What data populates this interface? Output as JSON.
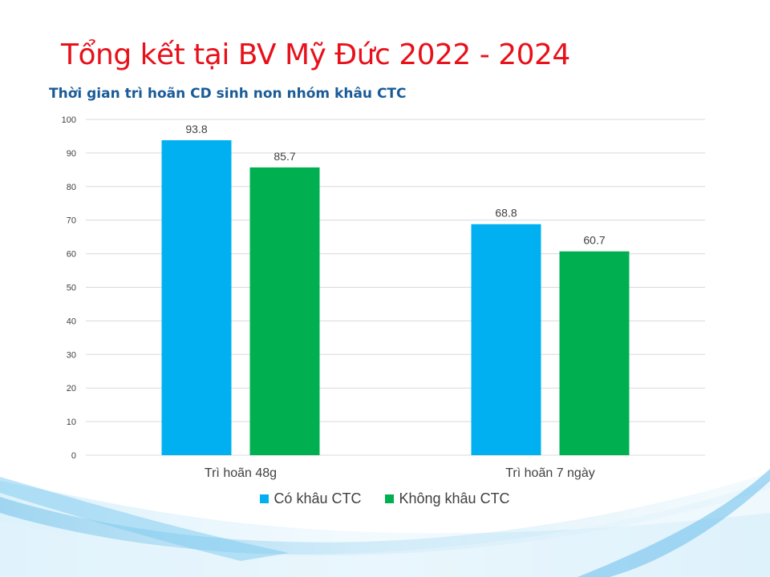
{
  "slide": {
    "title": "Tổng kết tại BV Mỹ Đức 2022 - 2024"
  },
  "colors": {
    "title": "#e8101a",
    "chart_title": "#1a5b97",
    "series_1": "#00b0f0",
    "series_2": "#00b050",
    "gridline": "#d9d9d9",
    "axis_text": "#404040"
  },
  "chart_data": {
    "type": "bar",
    "title": "Thời gian trì hoãn CD sinh non nhóm khâu CTC",
    "categories": [
      "Trì hoãn 48g",
      "Trì hoãn 7 ngày"
    ],
    "series": [
      {
        "name": "Có khâu CTC",
        "values": [
          93.8,
          68.8
        ],
        "color": "#00b0f0"
      },
      {
        "name": "Không khâu CTC",
        "values": [
          85.7,
          60.7
        ],
        "color": "#00b050"
      }
    ],
    "ylim": [
      0,
      100
    ],
    "yticks": [
      0,
      10,
      20,
      30,
      40,
      50,
      60,
      70,
      80,
      90,
      100
    ],
    "grid": true,
    "legend_position": "bottom",
    "xlabel": "",
    "ylabel": ""
  }
}
